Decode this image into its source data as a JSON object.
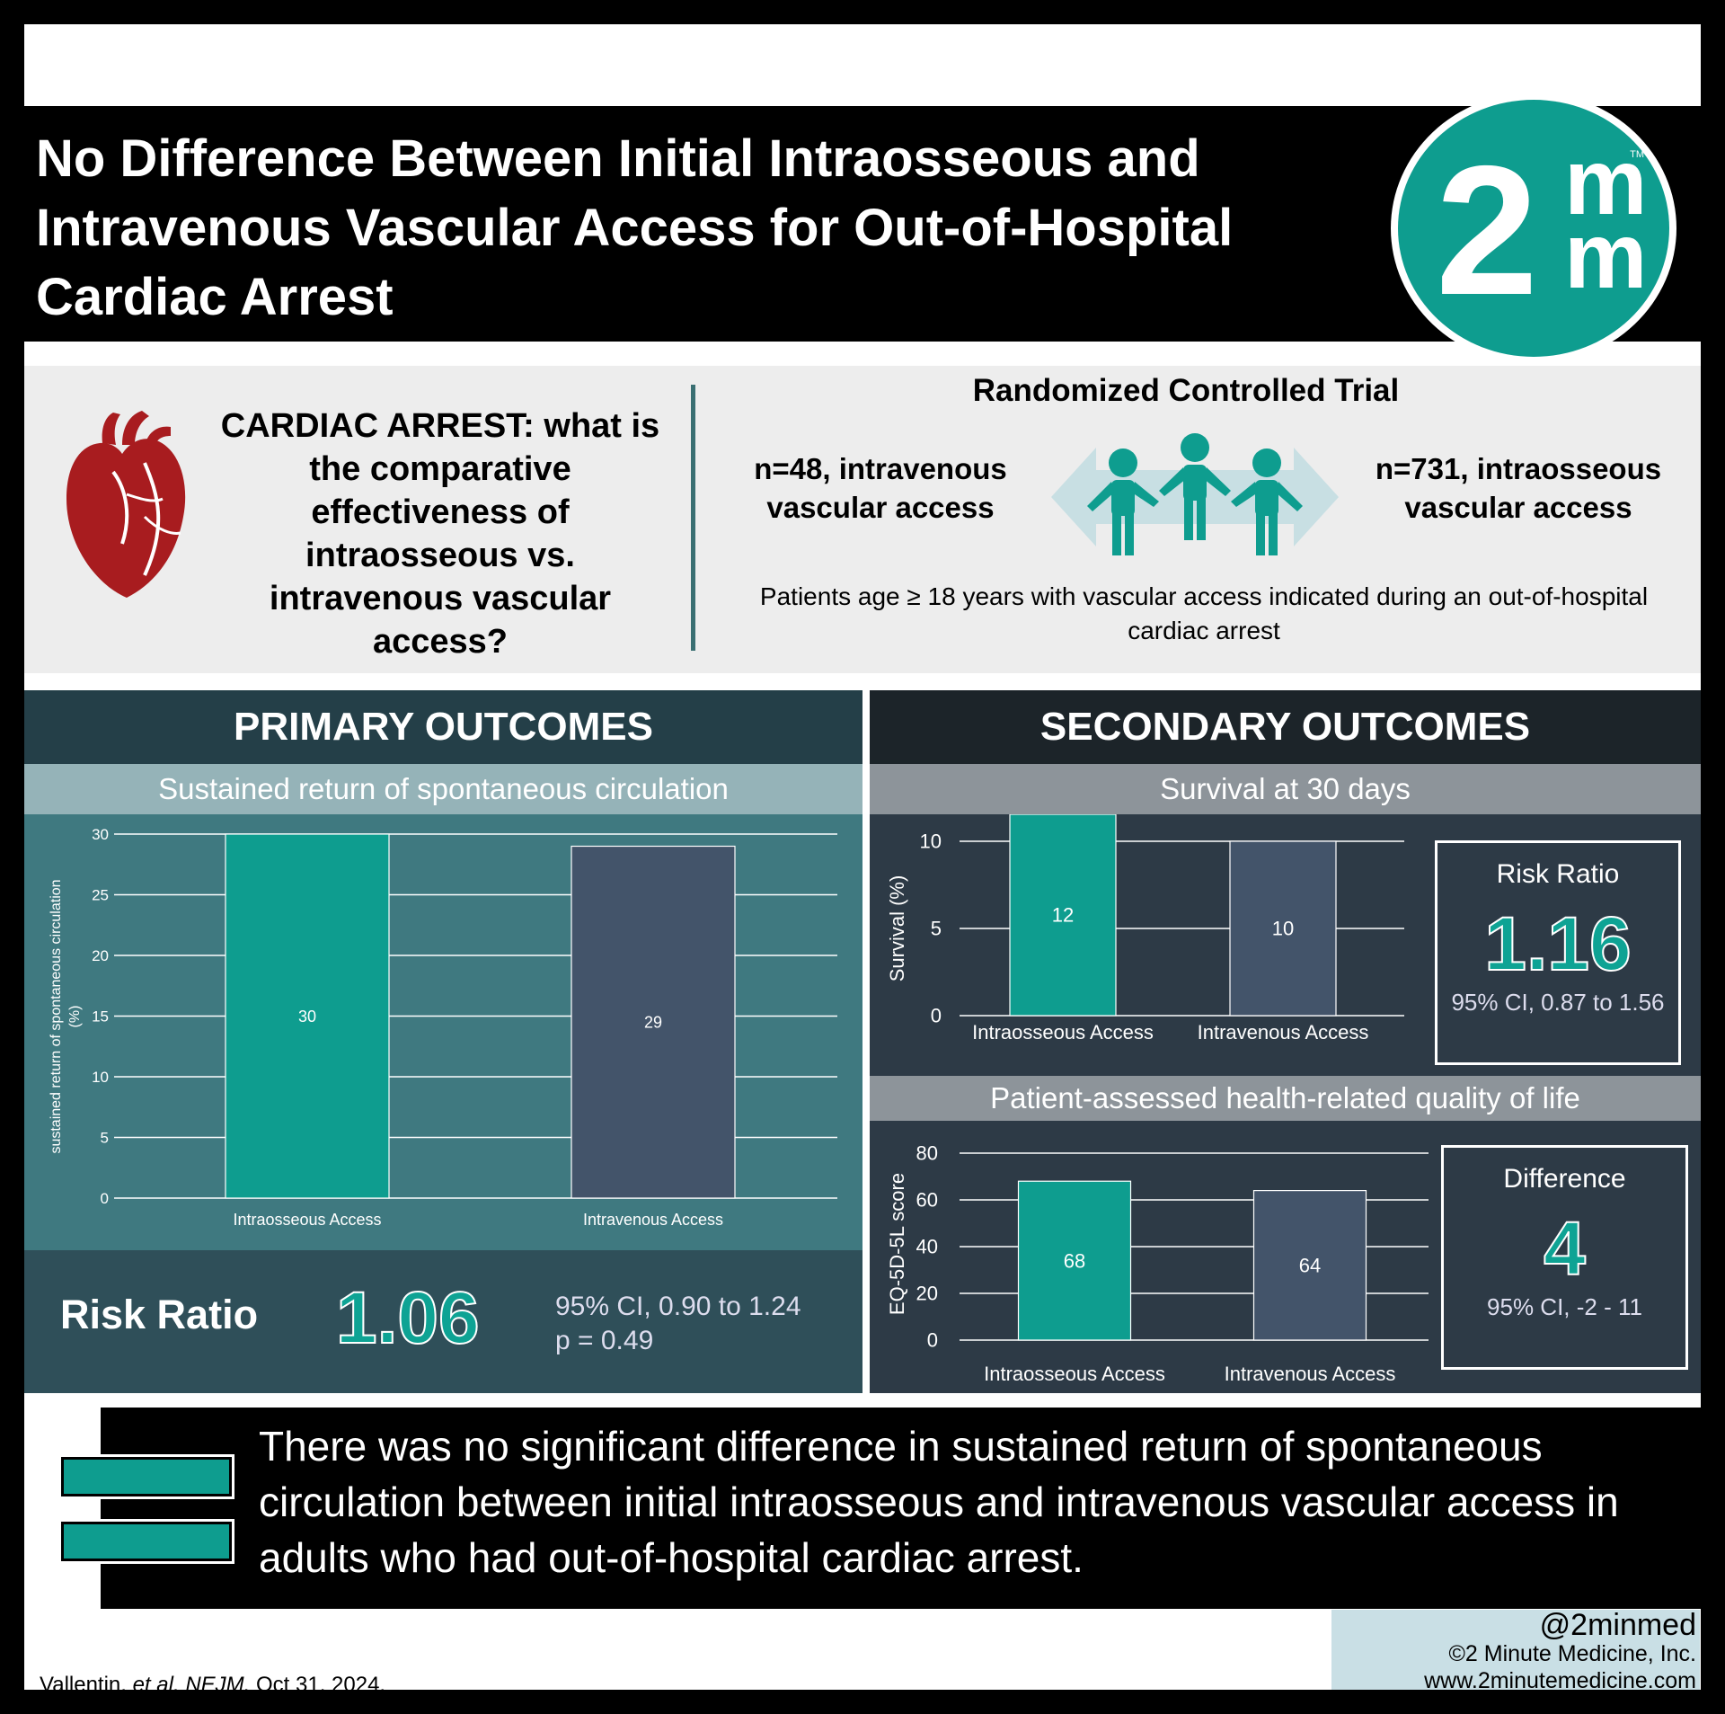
{
  "header": {
    "title": "No Difference Between Initial Intraosseous and Intravenous Vascular Access for Out-of-Hospital Cardiac Arrest",
    "logo": {
      "digit": "2",
      "letter_top": "m",
      "letter_bottom": "m",
      "tm": "TM"
    },
    "accent_color": "#0e9d8f"
  },
  "study": {
    "question": "CARDIAC ARREST: what is the comparative effectiveness of intraosseous vs. intravenous vascular access?",
    "design": "Randomized Controlled Trial",
    "arm_left": "n=48, intravenous vascular access",
    "arm_right": "n=731, intraosseous vascular access",
    "population": "Patients age ≥ 18 years with vascular access indicated during an out-of-hospital cardiac arrest",
    "icons": [
      "heart-icon",
      "people-icon"
    ]
  },
  "primary": {
    "heading": "PRIMARY OUTCOMES",
    "subheading": "Sustained return of spontaneous circulation",
    "rr_label": "Risk Ratio",
    "rr_value": "1.06",
    "ci": "95% CI,  0.90 to 1.24",
    "p": "p = 0.49"
  },
  "secondary": {
    "heading": "SECONDARY OUTCOMES",
    "survival_heading": "Survival at 30 days",
    "survival_box": {
      "label": "Risk Ratio",
      "value": "1.16",
      "ci": "95% CI, 0.87 to 1.56"
    },
    "qol_heading": "Patient-assessed health-related quality of life",
    "qol_box": {
      "label": "Difference",
      "value": "4",
      "ci": "95% CI, -2 - 11"
    }
  },
  "chart_data": [
    {
      "type": "bar",
      "categories": [
        "Intraosseous Access",
        "Intravenous Access"
      ],
      "values": [
        30,
        29
      ],
      "ylabel": "sustained return of spontaneous circulation (%)",
      "ylim": [
        0,
        30
      ],
      "yticks": [
        0,
        5,
        10,
        15,
        20,
        25,
        30
      ],
      "colors": [
        "#0e9d8f",
        "#43546a"
      ]
    },
    {
      "type": "bar",
      "categories": [
        "Intraosseous Access",
        "Intravenous Access"
      ],
      "values": [
        12,
        10
      ],
      "ylabel": "Survival (%)",
      "ylim": [
        0,
        10
      ],
      "yticks": [
        0,
        5,
        10
      ],
      "colors": [
        "#0e9d8f",
        "#43546a"
      ]
    },
    {
      "type": "bar",
      "categories": [
        "Intraosseous Access",
        "Intravenous Access"
      ],
      "values": [
        68,
        64
      ],
      "ylabel": "EQ-5D-5L score",
      "ylim": [
        0,
        80
      ],
      "yticks": [
        0,
        20,
        40,
        60,
        80
      ],
      "colors": [
        "#0e9d8f",
        "#43546a"
      ]
    }
  ],
  "conclusion": "There was no significant difference in sustained return of spontaneous circulation between initial intraosseous and intravenous vascular access in adults who had out-of-hospital cardiac arrest.",
  "footer": {
    "citation_authors": "Vallentin,",
    "citation_etal": "et al.",
    "citation_journal": "NEJM.",
    "citation_date": "Oct 31, 2024.",
    "handle": "@2minmed",
    "copyright": "©2 Minute Medicine, Inc.",
    "website": "www.2minutemedicine.com"
  }
}
